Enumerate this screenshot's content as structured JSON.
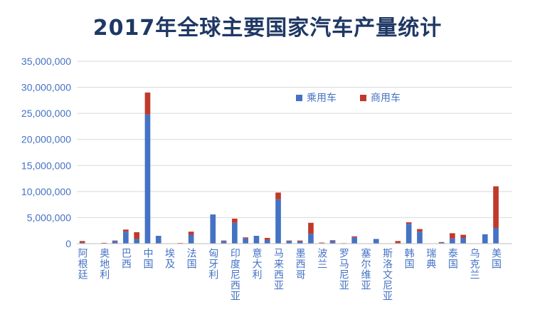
{
  "chart_data": {
    "type": "bar",
    "stacked": true,
    "title": "2017年全球主要国家汽车产量统计",
    "xlabel": "",
    "ylabel": "",
    "ylim": [
      0,
      35000000
    ],
    "yticks": [
      "0",
      "5,000,000",
      "10,000,000",
      "15,000,000",
      "20,000,000",
      "25,000,000",
      "30,000,000",
      "35,000,000"
    ],
    "grid": true,
    "legend": "upper-right-inside",
    "categories": [
      "阿根廷",
      null,
      "奥地利",
      null,
      "巴西",
      null,
      "中国",
      null,
      "埃及",
      null,
      "法国",
      null,
      "匈牙利",
      null,
      "印度尼西亚",
      null,
      "意大利",
      null,
      "马来西亚",
      null,
      "墨西哥",
      null,
      "波兰",
      null,
      "罗马尼亚",
      null,
      "塞尔维亚",
      null,
      "斯洛文尼亚",
      null,
      "韩国",
      null,
      "瑞典",
      null,
      "泰国",
      null,
      "乌克兰",
      null,
      "美国",
      null
    ],
    "xtick_labels": [
      "阿根廷",
      "奥地利",
      "巴西",
      "中国",
      "埃及",
      "法国",
      "匈牙利",
      "印度尼西亚",
      "意大利",
      "马来西亚",
      "墨西哥",
      "波兰",
      "罗马尼亚",
      "塞尔维亚",
      "斯洛文尼亚",
      "韩国",
      "瑞典",
      "泰国",
      "乌克兰",
      "美国"
    ],
    "series": [
      {
        "name": "乘用车",
        "color": "#4472c4",
        "values": [
          200000,
          20000,
          100000,
          500000,
          2300000,
          900000,
          24800000,
          1500000,
          20000,
          100000,
          1700000,
          20000,
          5600000,
          500000,
          4000000,
          1000000,
          1500000,
          700000,
          8500000,
          500000,
          450000,
          1900000,
          100000,
          550000,
          50000,
          1200000,
          20000,
          900000,
          20000,
          100000,
          3800000,
          2300000,
          20000,
          200000,
          1000000,
          1100000,
          20000,
          1800000,
          3000000,
          30000
        ]
      },
      {
        "name": "商用车",
        "color": "#c0392b",
        "values": [
          300000,
          0,
          50000,
          100000,
          400000,
          1300000,
          4200000,
          0,
          50000,
          20000,
          600000,
          0,
          0,
          100000,
          800000,
          200000,
          0,
          400000,
          1300000,
          100000,
          150000,
          2100000,
          100000,
          100000,
          50000,
          200000,
          0,
          0,
          0,
          400000,
          300000,
          500000,
          0,
          100000,
          1000000,
          600000,
          0,
          0,
          8000000,
          0
        ]
      }
    ]
  }
}
